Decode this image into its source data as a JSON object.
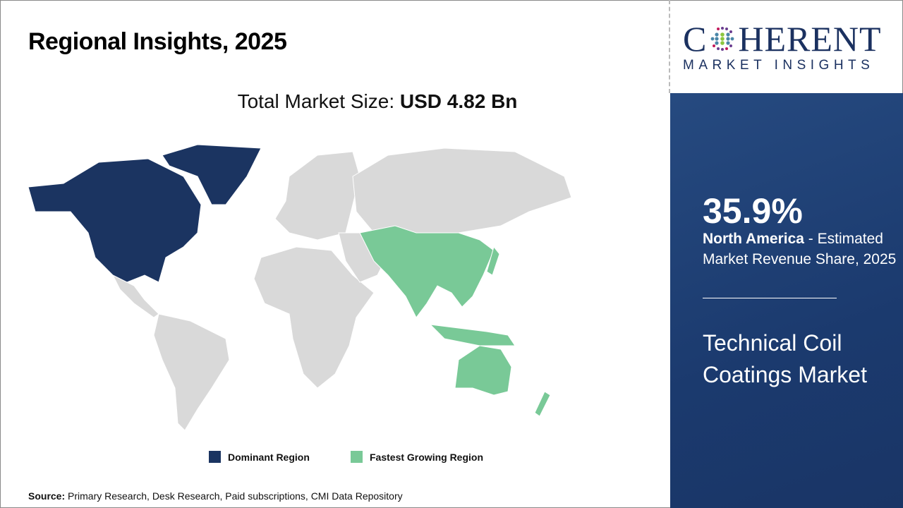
{
  "header": {
    "title": "Regional Insights, 2025"
  },
  "summary": {
    "label": "Total Market Size: ",
    "value": "USD 4.82 Bn"
  },
  "logo": {
    "line1_a": "C",
    "line1_b": "HERENT",
    "line2": "MARKET INSIGHTS"
  },
  "panel": {
    "percent": "35.9%",
    "region": "North America",
    "desc": " - Estimated Market Revenue Share, 2025",
    "market": "Technical Coil Coatings Market"
  },
  "legend": [
    {
      "label": "Dominant Region",
      "color": "#1b3461"
    },
    {
      "label": "Fastest Growing Region",
      "color": "#79c997"
    }
  ],
  "map": {
    "base_color": "#d9d9d9",
    "dominant": "North America",
    "fastest": "Asia Pacific"
  },
  "source": {
    "label": "Source:",
    "text": " Primary Research, Desk Research, Paid subscriptions, CMI Data Repository"
  }
}
